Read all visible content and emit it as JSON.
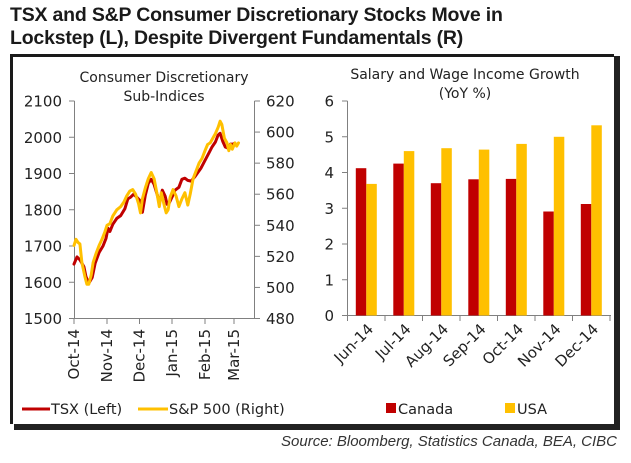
{
  "title_line1": "TSX and S&P Consumer Discretionary Stocks Move in",
  "title_line2": "Lockstep (L), Despite Divergent Fundamentals (R)",
  "source": "Source: Bloomberg, Statistics Canada, BEA, CIBC",
  "colors": {
    "tsx": "#c00000",
    "sp500": "#ffc000",
    "canada": "#c00000",
    "usa": "#ffc000",
    "axis": "#808080",
    "frame": "#1a1a1a"
  },
  "chart_data": [
    {
      "type": "line",
      "title": "Consumer Discretionary Sub-Indices",
      "title_lines": [
        "Consumer Discretionary",
        "Sub-Indices"
      ],
      "xlabel": "",
      "x_ticks": [
        "Oct-14",
        "Nov-14",
        "Dec-14",
        "Jan-15",
        "Feb-15",
        "Mar-15"
      ],
      "x_range_months": [
        0,
        5.6
      ],
      "y_left": {
        "label": "TSX",
        "ylim": [
          1500,
          2100
        ],
        "ticks": [
          "1500",
          "1600",
          "1700",
          "1800",
          "1900",
          "2000",
          "2100"
        ]
      },
      "y_right": {
        "label": "S&P 500",
        "ylim": [
          480,
          620
        ],
        "ticks": [
          "480",
          "500",
          "520",
          "540",
          "560",
          "580",
          "600",
          "620"
        ]
      },
      "legend": {
        "placement": "bottom",
        "entries": [
          "TSX (Left)",
          "S&P 500 (Right)"
        ]
      },
      "grid": false,
      "series": [
        {
          "name": "TSX (Left)",
          "axis": "left",
          "x": [
            0.0,
            0.09,
            0.18,
            0.3,
            0.36,
            0.45,
            0.55,
            0.64,
            0.76,
            0.88,
            0.97,
            1.03,
            1.09,
            1.18,
            1.3,
            1.42,
            1.55,
            1.64,
            1.73,
            1.82,
            1.91,
            2.0,
            2.09,
            2.18,
            2.27,
            2.36,
            2.45,
            2.55,
            2.61,
            2.7,
            2.79,
            2.85,
            2.91,
            3.0,
            3.09,
            3.21,
            3.3,
            3.39,
            3.48,
            3.58,
            3.7,
            3.79,
            3.88,
            3.97,
            4.06,
            4.15,
            4.24,
            4.36,
            4.45,
            4.52,
            4.61,
            4.7,
            4.79,
            4.88,
            4.97,
            5.03
          ],
          "values": [
            1650,
            1670,
            1662,
            1643,
            1616,
            1597,
            1613,
            1652,
            1682,
            1700,
            1721,
            1749,
            1740,
            1760,
            1776,
            1784,
            1803,
            1830,
            1835,
            1843,
            1835,
            1827,
            1793,
            1840,
            1873,
            1884,
            1870,
            1840,
            1818,
            1854,
            1837,
            1815,
            1818,
            1835,
            1854,
            1862,
            1884,
            1887,
            1881,
            1879,
            1892,
            1904,
            1915,
            1931,
            1945,
            1959,
            1973,
            1987,
            2006,
            2011,
            1989,
            1973,
            1970,
            1981,
            1981,
            1984
          ]
        },
        {
          "name": "S&P 500 (Right)",
          "axis": "right",
          "x": [
            0.0,
            0.06,
            0.12,
            0.18,
            0.24,
            0.33,
            0.39,
            0.45,
            0.52,
            0.58,
            0.67,
            0.76,
            0.85,
            0.94,
            1.0,
            1.09,
            1.18,
            1.3,
            1.42,
            1.52,
            1.61,
            1.7,
            1.79,
            1.88,
            1.97,
            2.03,
            2.09,
            2.18,
            2.27,
            2.36,
            2.45,
            2.55,
            2.61,
            2.67,
            2.76,
            2.82,
            2.88,
            2.94,
            3.03,
            3.12,
            3.21,
            3.3,
            3.39,
            3.48,
            3.55,
            3.64,
            3.73,
            3.82,
            3.91,
            4.0,
            4.09,
            4.18,
            4.27,
            4.36,
            4.45,
            4.52,
            4.58,
            4.67,
            4.76,
            4.82,
            4.88,
            4.94,
            5.03,
            5.09,
            5.15
          ],
          "values": [
            527,
            531,
            529,
            528,
            516,
            507,
            502,
            502,
            508,
            516,
            522,
            527,
            531,
            536,
            540,
            541,
            546,
            550,
            552,
            555,
            559,
            562,
            563,
            560,
            554,
            548,
            557,
            564,
            570,
            574,
            570,
            559,
            552,
            561,
            553,
            548,
            550,
            558,
            563,
            559,
            552,
            557,
            561,
            553,
            560,
            570,
            575,
            580,
            583,
            588,
            592,
            593,
            596,
            599,
            603,
            607,
            605,
            596,
            593,
            588,
            592,
            589,
            593,
            591,
            593
          ]
        }
      ]
    },
    {
      "type": "bar",
      "title": "Salary and Wage Income Growth (YoY %)",
      "title_lines": [
        "Salary and Wage Income Growth",
        "(YoY %)"
      ],
      "categories": [
        "Jun-14",
        "Jul-14",
        "Aug-14",
        "Sep-14",
        "Oct-14",
        "Nov-14",
        "Dec-14"
      ],
      "series": [
        {
          "name": "Canada",
          "values": [
            4.12,
            4.25,
            3.7,
            3.81,
            3.82,
            2.91,
            3.12
          ]
        },
        {
          "name": "USA",
          "values": [
            3.68,
            4.6,
            4.68,
            4.64,
            4.8,
            5.0,
            5.32
          ]
        }
      ],
      "xlabel": "",
      "ylabel": "",
      "ylim": [
        0,
        6
      ],
      "y_ticks": [
        "0",
        "1",
        "2",
        "3",
        "4",
        "5",
        "6"
      ],
      "legend": {
        "placement": "bottom",
        "entries": [
          "Canada",
          "USA"
        ]
      },
      "grid": false
    }
  ]
}
